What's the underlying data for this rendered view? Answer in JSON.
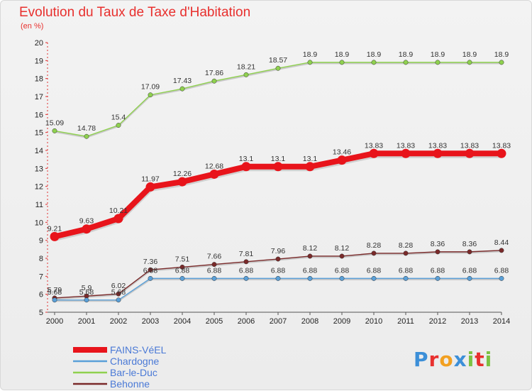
{
  "header": {
    "title": "Evolution du Taux de Taxe d'Habitation",
    "unit": "(en %)"
  },
  "brand": {
    "letters": [
      "P",
      "r",
      "o",
      "x",
      "i",
      "t",
      "i"
    ],
    "colors": [
      "#3c8fd8",
      "#e8302e",
      "#f2a021",
      "#3c8fd8",
      "#7cc242",
      "#e8302e",
      "#7cc242"
    ]
  },
  "chart_data": {
    "type": "line",
    "title": "Evolution du Taux de Taxe d'Habitation",
    "ylabel": "(en %)",
    "xlabel": "",
    "x": [
      "2000",
      "2001",
      "2002",
      "2003",
      "2004",
      "2005",
      "2006",
      "2007",
      "2008",
      "2009",
      "2010",
      "2011",
      "2012",
      "2013",
      "2014"
    ],
    "ylim": [
      5,
      20
    ],
    "yticks": [
      "5",
      "6",
      "7",
      "8",
      "9",
      "10",
      "11",
      "12",
      "13",
      "14",
      "15",
      "16",
      "17",
      "18",
      "19",
      "20"
    ],
    "grid": false,
    "legend_position": "bottom-left",
    "series": [
      {
        "name": "FAINS-VéEL",
        "color": "#e8141b",
        "emphasis": true,
        "values": [
          9.21,
          9.63,
          10.21,
          11.97,
          12.26,
          12.68,
          13.1,
          13.1,
          13.1,
          13.46,
          13.83,
          13.83,
          13.83,
          13.83,
          13.83
        ],
        "labels": [
          "9.21",
          "9.63",
          "10.21",
          "11.97",
          "12.26",
          "12.68",
          "13.1",
          "13.1",
          "13.1",
          "13.46",
          "13.83",
          "13.83",
          "13.83",
          "13.83",
          "13.83"
        ]
      },
      {
        "name": "Chardogne",
        "color": "#5aa0d8",
        "emphasis": false,
        "values": [
          5.68,
          5.68,
          5.68,
          6.88,
          6.88,
          6.88,
          6.88,
          6.88,
          6.88,
          6.88,
          6.88,
          6.88,
          6.88,
          6.88,
          6.88
        ],
        "labels": [
          "5.68",
          "5.68",
          "5.68",
          "6.88",
          "6.88",
          "6.88",
          "6.88",
          "6.88",
          "6.88",
          "6.88",
          "6.88",
          "6.88",
          "6.88",
          "6.88",
          "6.88"
        ]
      },
      {
        "name": "Bar-le-Duc",
        "color": "#8fd14f",
        "emphasis": false,
        "values": [
          15.09,
          14.78,
          15.4,
          17.09,
          17.43,
          17.86,
          18.21,
          18.57,
          18.9,
          18.9,
          18.9,
          18.9,
          18.9,
          18.9,
          18.9
        ],
        "labels": [
          "15.09",
          "14.78",
          "15.4",
          "17.09",
          "17.43",
          "17.86",
          "18.21",
          "18.57",
          "18.9",
          "18.9",
          "18.9",
          "18.9",
          "18.9",
          "18.9",
          "18.9"
        ]
      },
      {
        "name": "Behonne",
        "color": "#7a2a2a",
        "emphasis": false,
        "values": [
          5.79,
          5.9,
          6.02,
          7.36,
          7.51,
          7.66,
          7.81,
          7.96,
          8.12,
          8.12,
          8.28,
          8.28,
          8.36,
          8.36,
          8.44
        ],
        "labels": [
          "5.79",
          "5.9",
          "6.02",
          "7.36",
          "7.51",
          "7.66",
          "7.81",
          "7.96",
          "8.12",
          "8.12",
          "8.28",
          "8.28",
          "8.36",
          "8.36",
          "8.44"
        ]
      }
    ]
  }
}
